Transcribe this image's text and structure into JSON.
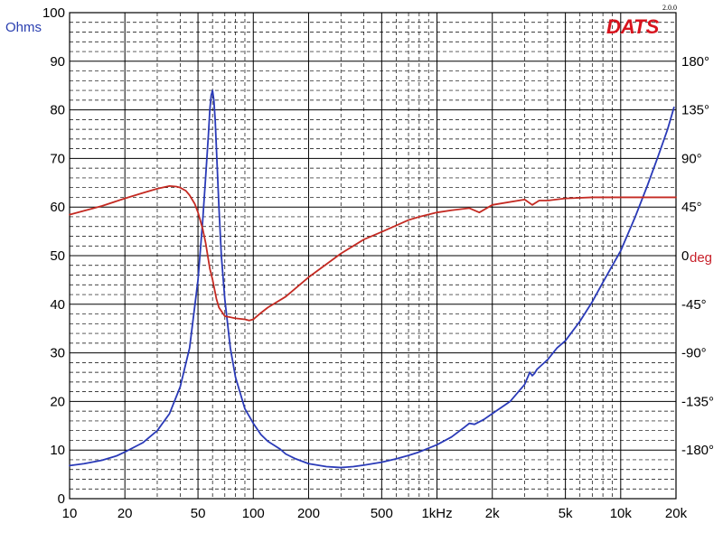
{
  "chart_data": {
    "type": "line",
    "title": "",
    "logo_text": "DATS",
    "version_text": "2.0.0",
    "left_axis_label": "Ohms",
    "right_axis_label": "deg",
    "x_scale": "log",
    "x_range": [
      10,
      20000
    ],
    "y_left_range": [
      0,
      100
    ],
    "y_right_range": [
      -225,
      225
    ],
    "x_tick_labels": [
      "10",
      "20",
      "50",
      "100",
      "200",
      "500",
      "1kHz",
      "2k",
      "5k",
      "10k",
      "20k"
    ],
    "x_tick_values": [
      10,
      20,
      50,
      100,
      200,
      500,
      1000,
      2000,
      5000,
      10000,
      20000
    ],
    "y_left_tick_labels": [
      "0",
      "10",
      "20",
      "30",
      "40",
      "50",
      "60",
      "70",
      "80",
      "90",
      "100"
    ],
    "y_left_tick_values": [
      0,
      10,
      20,
      30,
      40,
      50,
      60,
      70,
      80,
      90,
      100
    ],
    "y_right_tick_labels": [
      "-180°",
      "-135°",
      "-90°",
      "-45°",
      "0",
      "45°",
      "90°",
      "135°",
      "180°"
    ],
    "y_right_tick_values": [
      -180,
      -135,
      -90,
      -45,
      0,
      45,
      90,
      135,
      180
    ],
    "grid": true,
    "colors": {
      "impedance": "#2a3ab8",
      "phase": "#c42a22",
      "grid": "#000000"
    },
    "series": [
      {
        "axis": "left",
        "x": [
          10,
          12,
          15,
          18,
          20,
          25,
          30,
          35,
          40,
          45,
          50,
          53,
          55,
          57,
          58,
          59,
          60,
          61,
          62,
          63,
          65,
          67,
          70,
          75,
          80,
          90,
          100,
          110,
          120,
          140,
          150,
          170,
          200,
          250,
          300,
          350,
          400,
          500,
          600,
          700,
          800,
          1000,
          1200,
          1400,
          1500,
          1600,
          1800,
          2000,
          2500,
          3000,
          3200,
          3300,
          3400,
          3500,
          4000,
          4500,
          5000,
          6000,
          7000,
          8000,
          10000,
          12000,
          14000,
          16000,
          18000,
          19500
        ],
        "y": [
          6.8,
          7.2,
          7.9,
          8.8,
          9.6,
          11.5,
          14.0,
          17.5,
          23.0,
          31.0,
          45.0,
          57.0,
          66.0,
          75.0,
          80.0,
          83.0,
          84.0,
          82.0,
          78.0,
          72.0,
          60.0,
          50.0,
          41.0,
          31.0,
          25.0,
          18.5,
          15.5,
          13.2,
          11.8,
          10.2,
          9.2,
          8.2,
          7.2,
          6.6,
          6.4,
          6.6,
          6.9,
          7.5,
          8.2,
          8.9,
          9.6,
          11.1,
          12.7,
          14.6,
          15.5,
          15.3,
          16.3,
          17.5,
          20.0,
          23.5,
          26.0,
          25.3,
          25.8,
          26.6,
          28.6,
          31.0,
          32.5,
          36.5,
          40.5,
          44.5,
          51.0,
          58.0,
          64.5,
          70.5,
          76.0,
          80.5
        ]
      },
      {
        "axis": "right",
        "x": [
          10,
          15,
          20,
          25,
          30,
          35,
          38,
          40,
          43,
          45,
          48,
          50,
          53,
          55,
          58,
          60,
          63,
          65,
          70,
          80,
          90,
          95,
          100,
          110,
          120,
          150,
          200,
          300,
          400,
          500,
          600,
          700,
          800,
          1000,
          1200,
          1500,
          1700,
          2000,
          3000,
          3300,
          3600,
          4000,
          5000,
          7000,
          10000,
          15000,
          20000
        ],
        "y": [
          38,
          46,
          53,
          58,
          62,
          64.5,
          64,
          63,
          60,
          56,
          48,
          40,
          25,
          12,
          -12,
          -22,
          -40,
          -48,
          -56,
          -58,
          -59,
          -60,
          -59,
          -53,
          -48,
          -38,
          -20,
          2,
          15,
          22,
          28,
          33,
          36,
          40,
          42,
          44,
          40,
          47,
          52,
          47,
          51,
          51,
          53,
          54,
          54,
          54,
          54
        ]
      }
    ]
  }
}
